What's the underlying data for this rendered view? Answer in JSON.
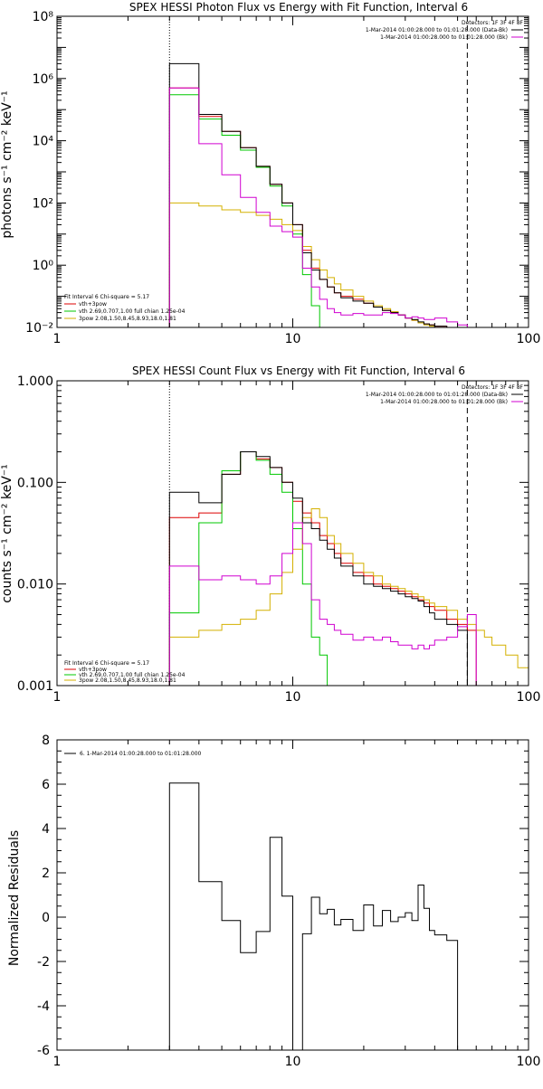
{
  "chart_data": [
    {
      "type": "line",
      "title": "SPEX HESSI Photon Flux vs Energy with Fit Function, Interval 6",
      "ylabel": "photons s⁻¹ cm⁻² keV⁻¹",
      "xlabel": "",
      "xscale": "log",
      "yscale": "log",
      "xlim": [
        1,
        100
      ],
      "ylim": [
        0.01,
        100000000
      ],
      "xticks": [
        "1",
        "10",
        "100"
      ],
      "yticks": [
        "10⁻²",
        "10⁰",
        "10²",
        "10⁴",
        "10⁶",
        "10⁸"
      ],
      "legend_top_right": [
        "Detectors: 1F 3F 4F 8F",
        "1-Mar-2014 01:00:28.000 to 01:01:28.000 (Data-Bk)",
        "1-Mar-2014 01:00:28.000 to 01:01:28.000 (Bk)"
      ],
      "legend_bottom_left": [
        "Fit Interval 6   Chi-square = 5.17",
        "vth+3pow",
        "vth 2.69,0.707,1.00  full chian 1.25e-04",
        "3pow 2.08,1.50,8.45,8.93,18.0,1.81"
      ],
      "vlines": [
        3,
        55
      ],
      "colors": {
        "data": "#000000",
        "total": "#dd0000",
        "vth": "#00c800",
        "pow": "#d4b000",
        "bk": "#d000d0"
      },
      "edges": [
        3,
        4,
        5,
        6,
        7,
        8,
        9,
        10,
        11,
        12,
        13,
        14,
        15,
        16,
        18,
        20,
        22,
        24,
        26,
        28,
        30,
        32,
        34,
        36,
        38,
        40,
        45,
        50,
        55,
        60,
        65,
        70,
        80
      ],
      "series": [
        {
          "name": "vth+3pow",
          "key": "total",
          "values": [
            500000,
            60000,
            20000,
            6000,
            1500,
            400,
            100,
            20,
            3.0,
            0.8,
            0.35,
            0.2,
            0.13,
            0.1,
            0.08,
            0.06,
            0.045,
            0.035,
            0.03,
            0.025,
            0.02,
            0.017,
            0.014,
            0.013,
            0.012,
            0.011,
            0.01
          ]
        },
        {
          "name": "vth",
          "key": "vth",
          "values": [
            300000,
            50000,
            15000,
            5000,
            1400,
            350,
            80,
            10,
            0.5,
            0.05,
            0.01
          ]
        },
        {
          "name": "3pow",
          "key": "pow",
          "values": [
            100,
            80,
            60,
            50,
            40,
            30,
            20,
            13,
            4.0,
            1.5,
            0.7,
            0.4,
            0.25,
            0.16,
            0.1,
            0.07,
            0.05,
            0.04,
            0.032,
            0.025,
            0.02,
            0.017,
            0.014,
            0.012,
            0.011,
            0.01,
            0.009,
            0.007,
            0.005
          ]
        },
        {
          "name": "Data-Bk",
          "key": "data",
          "values": [
            3000000,
            70000,
            20000,
            6000,
            1500,
            400,
            100,
            20,
            2.5,
            0.7,
            0.35,
            0.2,
            0.13,
            0.09,
            0.07,
            0.06,
            0.045,
            0.035,
            0.03,
            0.025,
            0.02,
            0.018,
            0.015,
            0.013,
            0.012,
            0.011,
            0.01,
            0.008
          ]
        },
        {
          "name": "Bk",
          "key": "bk",
          "values": [
            500000,
            8000,
            800,
            150,
            50,
            18,
            12,
            8,
            0.8,
            0.2,
            0.08,
            0.04,
            0.03,
            0.025,
            0.028,
            0.025,
            0.025,
            0.03,
            0.028,
            0.025,
            0.02,
            0.022,
            0.02,
            0.018,
            0.018,
            0.02,
            0.015,
            0.012
          ]
        }
      ]
    },
    {
      "type": "line",
      "title": "SPEX HESSI Count Flux vs Energy with Fit Function, Interval 6",
      "ylabel": "counts s⁻¹ cm⁻² keV⁻¹",
      "xlabel": "",
      "xscale": "log",
      "yscale": "log",
      "xlim": [
        1,
        100
      ],
      "ylim": [
        0.001,
        1.0
      ],
      "xticks": [
        "1",
        "10",
        "100"
      ],
      "yticks": [
        "0.001",
        "0.010",
        "0.100",
        "1.000"
      ],
      "legend_top_right": [
        "Detectors: 1F 3F 4F 8F",
        "1-Mar-2014 01:00:28.000 to 01:01:28.000 (Data-Bk)",
        "1-Mar-2014 01:00:28.000 to 01:01:28.000 (Bk)"
      ],
      "legend_bottom_left": [
        "Fit Interval 6   Chi-square = 5.17",
        "vth+3pow",
        "vth 2.69,0.707,1.00  full chian 1.25e-04",
        "3pow 2.08,1.50,8.45,8.93,18.0,1.81"
      ],
      "vlines": [
        3,
        55
      ],
      "colors": {
        "data": "#000000",
        "total": "#dd0000",
        "vth": "#00c800",
        "pow": "#d4b000",
        "bk": "#d000d0"
      },
      "edges": [
        3,
        4,
        5,
        6,
        7,
        8,
        9,
        10,
        11,
        12,
        13,
        14,
        15,
        16,
        18,
        20,
        22,
        24,
        26,
        28,
        30,
        32,
        34,
        36,
        38,
        40,
        45,
        50,
        55,
        60,
        65,
        70,
        80,
        90,
        100
      ],
      "series": [
        {
          "name": "vth+3pow",
          "key": "total",
          "values": [
            0.045,
            0.05,
            0.12,
            0.2,
            0.17,
            0.14,
            0.1,
            0.065,
            0.05,
            0.04,
            0.03,
            0.025,
            0.02,
            0.016,
            0.013,
            0.012,
            0.01,
            0.0095,
            0.009,
            0.0085,
            0.008,
            0.0075,
            0.007,
            0.0065,
            0.006,
            0.0055,
            0.0045,
            0.004,
            0.0035
          ]
        },
        {
          "name": "vth",
          "key": "vth",
          "values": [
            0.0052,
            0.04,
            0.13,
            0.2,
            0.165,
            0.12,
            0.08,
            0.035,
            0.01,
            0.003,
            0.002,
            0.001
          ]
        },
        {
          "name": "3pow",
          "key": "pow",
          "values": [
            0.003,
            0.0035,
            0.004,
            0.0045,
            0.0055,
            0.008,
            0.013,
            0.022,
            0.045,
            0.055,
            0.045,
            0.03,
            0.025,
            0.02,
            0.016,
            0.013,
            0.012,
            0.01,
            0.0095,
            0.009,
            0.0085,
            0.008,
            0.0075,
            0.007,
            0.0065,
            0.006,
            0.0055,
            0.0045,
            0.004,
            0.0035,
            0.003,
            0.0025,
            0.002,
            0.0015
          ]
        },
        {
          "name": "Data-Bk",
          "key": "data",
          "values": [
            0.08,
            0.063,
            0.12,
            0.2,
            0.18,
            0.14,
            0.1,
            0.07,
            0.04,
            0.035,
            0.027,
            0.022,
            0.018,
            0.015,
            0.012,
            0.01,
            0.0095,
            0.009,
            0.0085,
            0.008,
            0.0075,
            0.0072,
            0.0068,
            0.006,
            0.0052,
            0.0045,
            0.004,
            0.0035
          ]
        },
        {
          "name": "Bk",
          "key": "bk",
          "values": [
            0.015,
            0.011,
            0.012,
            0.011,
            0.01,
            0.012,
            0.02,
            0.04,
            0.025,
            0.007,
            0.0045,
            0.004,
            0.0035,
            0.0032,
            0.0028,
            0.003,
            0.0028,
            0.003,
            0.0027,
            0.0025,
            0.0025,
            0.0023,
            0.0025,
            0.0023,
            0.0025,
            0.0028,
            0.003,
            0.0038,
            0.005
          ]
        }
      ]
    },
    {
      "type": "line",
      "title": "",
      "ylabel": "Normalized Residuals",
      "xlabel": "",
      "xscale": "log",
      "xlim": [
        1,
        100
      ],
      "ylim": [
        -6,
        8
      ],
      "xticks": [
        "1",
        "10",
        "100"
      ],
      "yticks": [
        "-6",
        "-4",
        "-2",
        "0",
        "2",
        "4",
        "6",
        "8"
      ],
      "legend": "6. 1-Mar-2014 01:00:28.000 to 01:01:28.000",
      "edges": [
        3,
        4,
        5,
        6,
        7,
        8,
        9,
        10,
        11,
        12,
        13,
        14,
        15,
        16,
        18,
        20,
        22,
        24,
        26,
        28,
        30,
        32,
        34,
        36,
        38,
        40,
        45,
        50,
        55
      ],
      "series": [
        {
          "name": "6. 1-Mar-2014 01:00:28.000 to 01:01:28.000",
          "values": [
            6.05,
            1.6,
            -0.15,
            -1.6,
            -0.65,
            3.6,
            0.95,
            -6.5,
            -0.75,
            0.9,
            0.15,
            0.35,
            -0.35,
            -0.1,
            -0.6,
            0.55,
            -0.4,
            0.3,
            -0.2,
            0.0,
            0.2,
            -0.15,
            1.45,
            0.4,
            -0.6,
            -0.8,
            -1.05
          ]
        }
      ]
    }
  ]
}
